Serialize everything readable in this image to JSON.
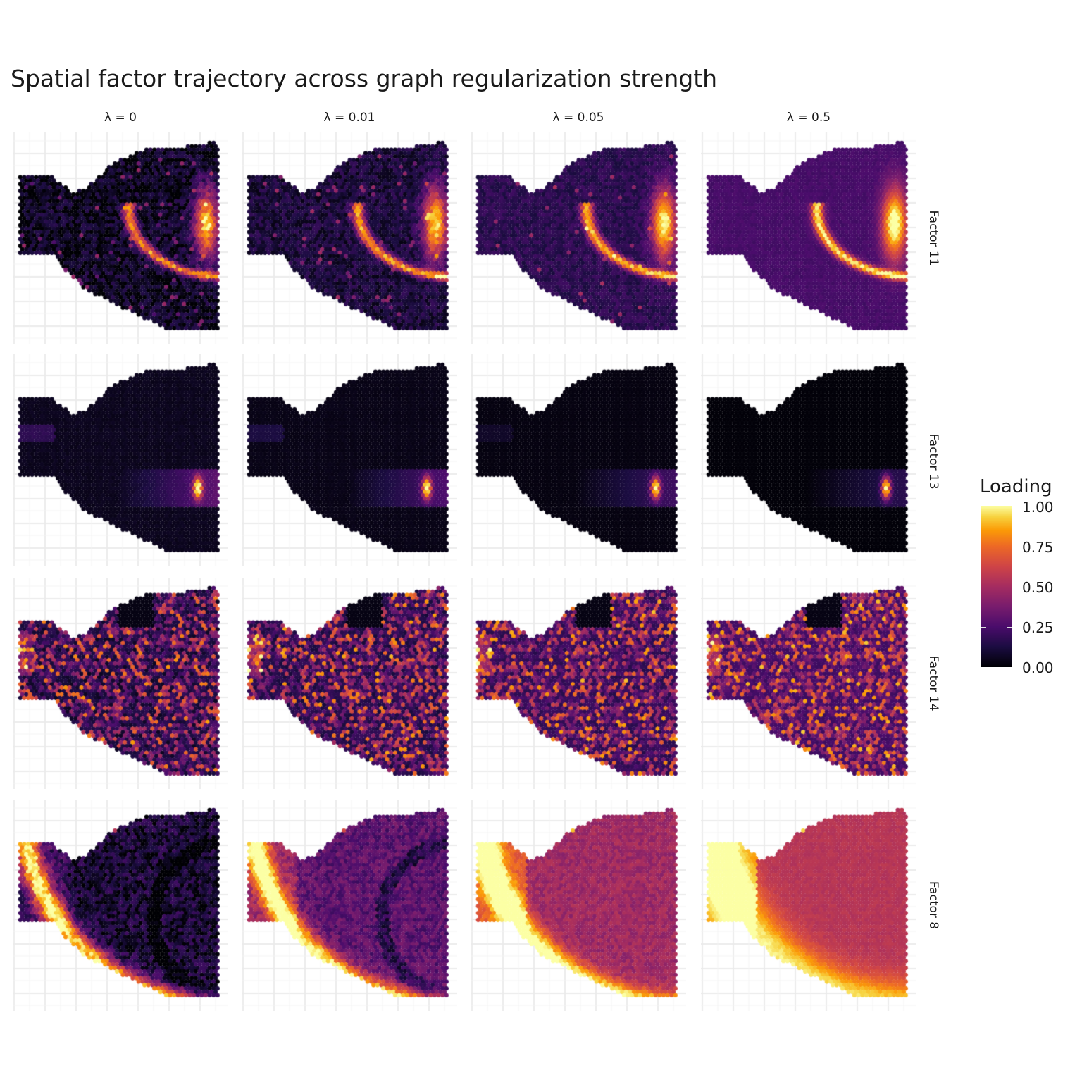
{
  "chart_data": {
    "type": "heatmap",
    "title": "Spatial factor trajectory across graph regularization strength",
    "facet_columns": [
      "λ = 0",
      "λ = 0.01",
      "λ = 0.05",
      "λ = 0.5"
    ],
    "lambda_values": [
      0,
      0.01,
      0.05,
      0.5
    ],
    "facet_rows": [
      "Factor 11",
      "Factor 13",
      "Factor 14",
      "Factor 8"
    ],
    "legend": {
      "title": "Loading",
      "placement": "right",
      "range": [
        0,
        1
      ],
      "ticks": [
        "1.00",
        "0.75",
        "0.50",
        "0.25",
        "0.00"
      ],
      "tick_values": [
        1,
        0.75,
        0.5,
        0.25,
        0
      ],
      "colormap": "inferno",
      "colors": [
        "#000004",
        "#1b0c41",
        "#4a0c6b",
        "#781c6d",
        "#a52c60",
        "#cf4446",
        "#ed6925",
        "#fb9b06",
        "#f7d13d",
        "#fcffa4"
      ]
    },
    "grid": true,
    "axis_text": false
  }
}
